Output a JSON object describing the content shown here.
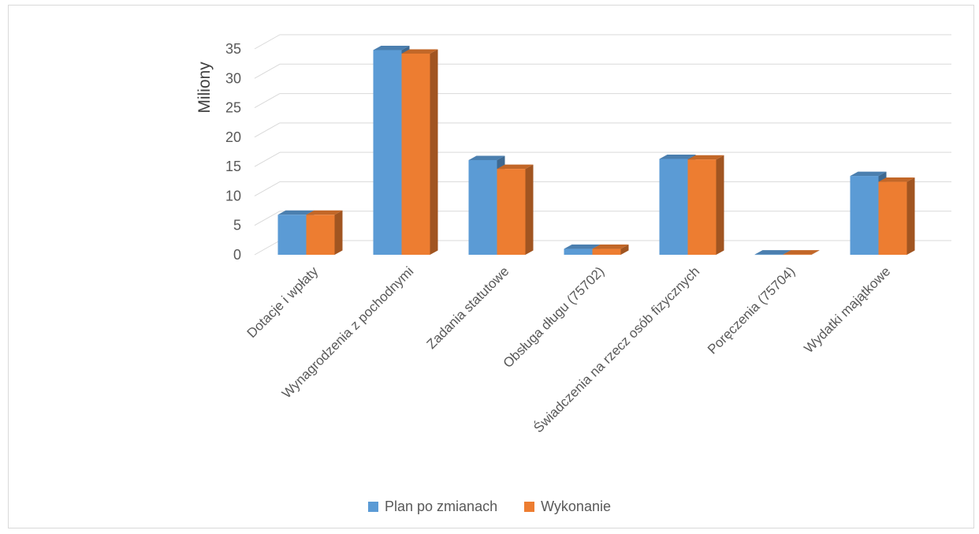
{
  "chart_data": {
    "type": "bar",
    "ylabel": "Miliony",
    "ylim": [
      0,
      35
    ],
    "yticks": [
      0,
      5,
      10,
      15,
      20,
      25,
      30,
      35
    ],
    "grid": true,
    "legend_position": "bottom",
    "categories": [
      "Dotacje i wpłaty",
      "Wynagrodzenia z pochodnymi",
      "Zadania statutowe",
      "Obsługa długu (75702)",
      "Świadczenia na rzecz osób fizycznych",
      "Poręczenia (75704)",
      "Wydatki majątkowe"
    ],
    "series": [
      {
        "name": "Plan po zmianach",
        "color": "#5b9bd5",
        "values": [
          6.8,
          34.8,
          16.1,
          1.0,
          16.3,
          0.05,
          13.4
        ]
      },
      {
        "name": "Wykonanie",
        "color": "#ed7d31",
        "values": [
          6.8,
          34.2,
          14.6,
          1.0,
          16.2,
          0.05,
          12.4
        ]
      }
    ]
  }
}
